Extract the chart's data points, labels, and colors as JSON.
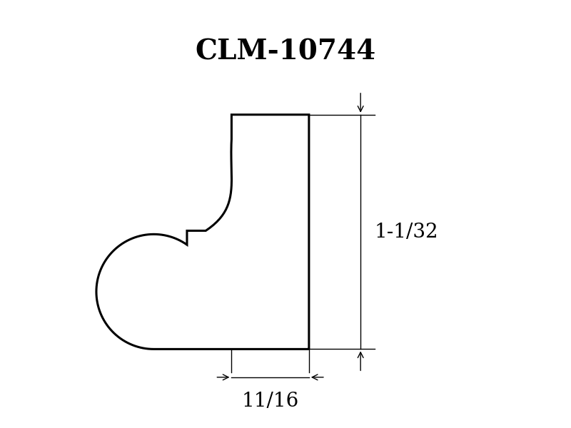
{
  "title": "CLM-10744",
  "title_fontsize": 28,
  "title_font": "serif",
  "bg_color": "#ffffff",
  "profile_color": "#000000",
  "profile_linewidth": 2.2,
  "dim_color": "#000000",
  "dim_linewidth": 1.0,
  "dim_label_height": "1-1/32",
  "dim_label_width": "11/16",
  "dim_fontsize": 20,
  "title_fontweight": "bold"
}
